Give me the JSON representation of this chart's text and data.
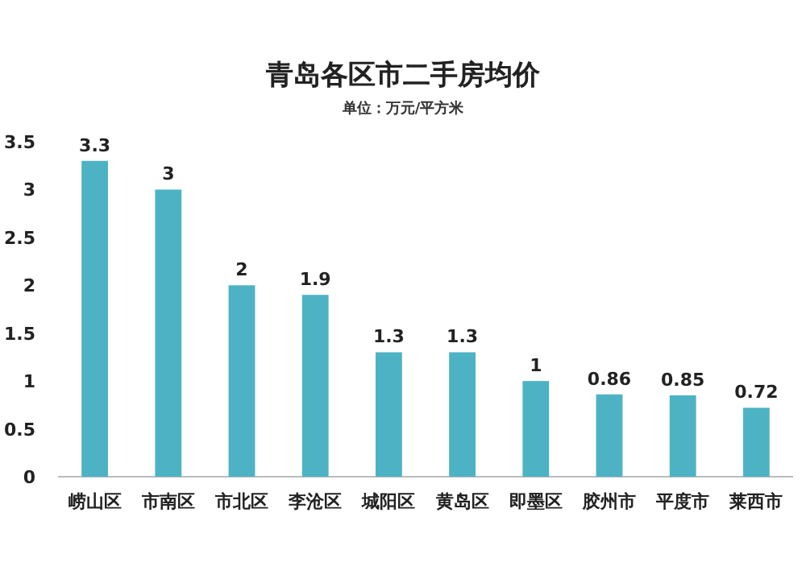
{
  "chart_data": {
    "type": "bar",
    "title": "青岛各区市二手房均价",
    "subtitle": "单位：万元/平方米",
    "categories": [
      "崂山区",
      "市南区",
      "市北区",
      "李沧区",
      "城阳区",
      "黄岛区",
      "即墨区",
      "胶州市",
      "平度市",
      "莱西市"
    ],
    "values": [
      3.3,
      3,
      2,
      1.9,
      1.3,
      1.3,
      1,
      0.86,
      0.85,
      0.72
    ],
    "color": "#4db3c4",
    "ylim": [
      0,
      3.5
    ],
    "yticks": [
      0,
      0.5,
      1,
      1.5,
      2,
      2.5,
      3,
      3.5
    ],
    "data_labels": true
  }
}
